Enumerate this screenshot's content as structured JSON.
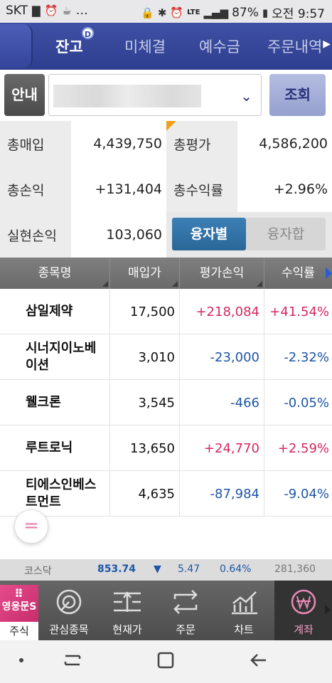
{
  "status_bar": {
    "carrier": "SKT",
    "extra": "…",
    "network": "LTE",
    "battery": "87%",
    "time": "오전 9:57"
  },
  "tabs": [
    {
      "label": "잔고",
      "active": true
    },
    {
      "label": "미체결",
      "active": false
    },
    {
      "label": "예수금",
      "active": false
    },
    {
      "label": "주문내역",
      "active": false
    }
  ],
  "tab_badge": "D",
  "account": {
    "guide_label": "안내",
    "search_label": "조회"
  },
  "summary": {
    "total_buy_label": "총매입",
    "total_buy_value": "4,439,750",
    "total_eval_label": "총평가",
    "total_eval_value": "4,586,200",
    "total_pl_label": "총손익",
    "total_pl_value": "+131,404",
    "total_rate_label": "총수익률",
    "total_rate_value": "+2.96%",
    "realized_label": "실현손익",
    "realized_value": "103,060",
    "toggle_on": "융자별",
    "toggle_off": "융자합"
  },
  "table": {
    "headers": [
      "종목명",
      "매입가",
      "평가손익",
      "수익률"
    ],
    "rows": [
      {
        "name": "삼일제약",
        "price": "17,500",
        "pl": "+218,084",
        "rate": "+41.54%",
        "dir": "up"
      },
      {
        "name": "시너지이노베\n이션",
        "price": "3,010",
        "pl": "-23,000",
        "rate": "-2.32%",
        "dir": "down"
      },
      {
        "name": "웰크론",
        "price": "3,545",
        "pl": "-466",
        "rate": "-0.05%",
        "dir": "down"
      },
      {
        "name": "루트로닉",
        "price": "13,650",
        "pl": "+24,770",
        "rate": "+2.59%",
        "dir": "up"
      },
      {
        "name": "티에스인베스\n트먼트",
        "price": "4,635",
        "pl": "-87,984",
        "rate": "-9.04%",
        "dir": "down"
      }
    ]
  },
  "fab_label": "=",
  "ticker": {
    "market": "코스닥",
    "index": "853.74",
    "arrow": "▼",
    "change": "5.47",
    "change_pct": "0.64%",
    "volume": "281,360"
  },
  "bottom_menu": {
    "home_logo": "영웅문S",
    "home_label": "주식",
    "items": [
      {
        "label": "관심종목",
        "icon": "target-icon"
      },
      {
        "label": "현재가",
        "icon": "price-bars-icon"
      },
      {
        "label": "주문",
        "icon": "exchange-arrows-icon"
      },
      {
        "label": "차트",
        "icon": "chart-icon"
      },
      {
        "label": "계좌",
        "icon": "won-icon",
        "active": true
      }
    ]
  },
  "colors": {
    "tab_bar": "#3a4ca6",
    "up": "#d4285e",
    "down": "#1d55a8",
    "toggle_active": "#2f72a8"
  }
}
